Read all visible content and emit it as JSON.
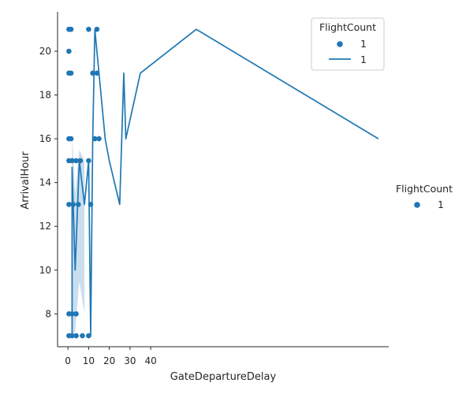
{
  "chart_data": {
    "type": "scatter",
    "xlabel": "GateDepartureDelay",
    "ylabel": "ArrivalHour",
    "xlim": [
      -5,
      155
    ],
    "ylim": [
      6.5,
      21.8
    ],
    "x_ticks": [
      0,
      10,
      20,
      30,
      40
    ],
    "x_tick_labels": [
      "0",
      "10",
      "20",
      "30",
      "40"
    ],
    "y_ticks": [
      8,
      10,
      12,
      14,
      16,
      18,
      20
    ],
    "y_tick_labels": [
      "8",
      "10",
      "12",
      "14",
      "16",
      "18",
      "20"
    ],
    "grid": false,
    "series_color": "#1f77b4",
    "band_color": "#a6c8e3",
    "scatter": [
      {
        "x": 0.5,
        "y": 21
      },
      {
        "x": 1.5,
        "y": 21
      },
      {
        "x": 10,
        "y": 21
      },
      {
        "x": 14,
        "y": 21
      },
      {
        "x": 0.5,
        "y": 20
      },
      {
        "x": 0.5,
        "y": 19
      },
      {
        "x": 1.5,
        "y": 19
      },
      {
        "x": 12,
        "y": 19
      },
      {
        "x": 14,
        "y": 19
      },
      {
        "x": 0.5,
        "y": 16
      },
      {
        "x": 1.5,
        "y": 16
      },
      {
        "x": 13,
        "y": 16
      },
      {
        "x": 15,
        "y": 16
      },
      {
        "x": 0.5,
        "y": 15
      },
      {
        "x": 2,
        "y": 15
      },
      {
        "x": 4,
        "y": 15
      },
      {
        "x": 6,
        "y": 15
      },
      {
        "x": 10,
        "y": 15
      },
      {
        "x": 0.5,
        "y": 13
      },
      {
        "x": 2.5,
        "y": 13
      },
      {
        "x": 5,
        "y": 13
      },
      {
        "x": 11,
        "y": 13
      },
      {
        "x": 0.5,
        "y": 8
      },
      {
        "x": 2,
        "y": 8
      },
      {
        "x": 4,
        "y": 8
      },
      {
        "x": 0.5,
        "y": 7
      },
      {
        "x": 2,
        "y": 7
      },
      {
        "x": 4,
        "y": 7
      },
      {
        "x": 7,
        "y": 7
      },
      {
        "x": 10,
        "y": 7
      }
    ],
    "line": [
      {
        "x": 2,
        "y": 7
      },
      {
        "x": 2,
        "y": 14.7
      },
      {
        "x": 3.5,
        "y": 10
      },
      {
        "x": 5.5,
        "y": 15
      },
      {
        "x": 8,
        "y": 13
      },
      {
        "x": 10,
        "y": 15
      },
      {
        "x": 11,
        "y": 7
      },
      {
        "x": 12,
        "y": 16
      },
      {
        "x": 13,
        "y": 21
      },
      {
        "x": 18,
        "y": 16
      },
      {
        "x": 20,
        "y": 15
      },
      {
        "x": 25,
        "y": 13
      },
      {
        "x": 27,
        "y": 19
      },
      {
        "x": 28,
        "y": 16
      },
      {
        "x": 35,
        "y": 19
      },
      {
        "x": 62,
        "y": 21
      },
      {
        "x": 150,
        "y": 16
      }
    ],
    "band": [
      {
        "x": 2,
        "lo": 7,
        "hi": 16.2
      },
      {
        "x": 3.5,
        "lo": 7.2,
        "hi": 13.5
      },
      {
        "x": 5.5,
        "lo": 9.5,
        "hi": 15.5
      },
      {
        "x": 8,
        "lo": 8,
        "hi": 15
      }
    ],
    "legend_main": {
      "title": "FlightCount",
      "position": "top-right",
      "entries": [
        {
          "kind": "marker",
          "label": "1"
        },
        {
          "kind": "line",
          "label": "1"
        }
      ]
    },
    "legend_side": {
      "title": "FlightCount",
      "position": "right",
      "entries": [
        {
          "kind": "marker",
          "label": "1"
        }
      ]
    }
  }
}
